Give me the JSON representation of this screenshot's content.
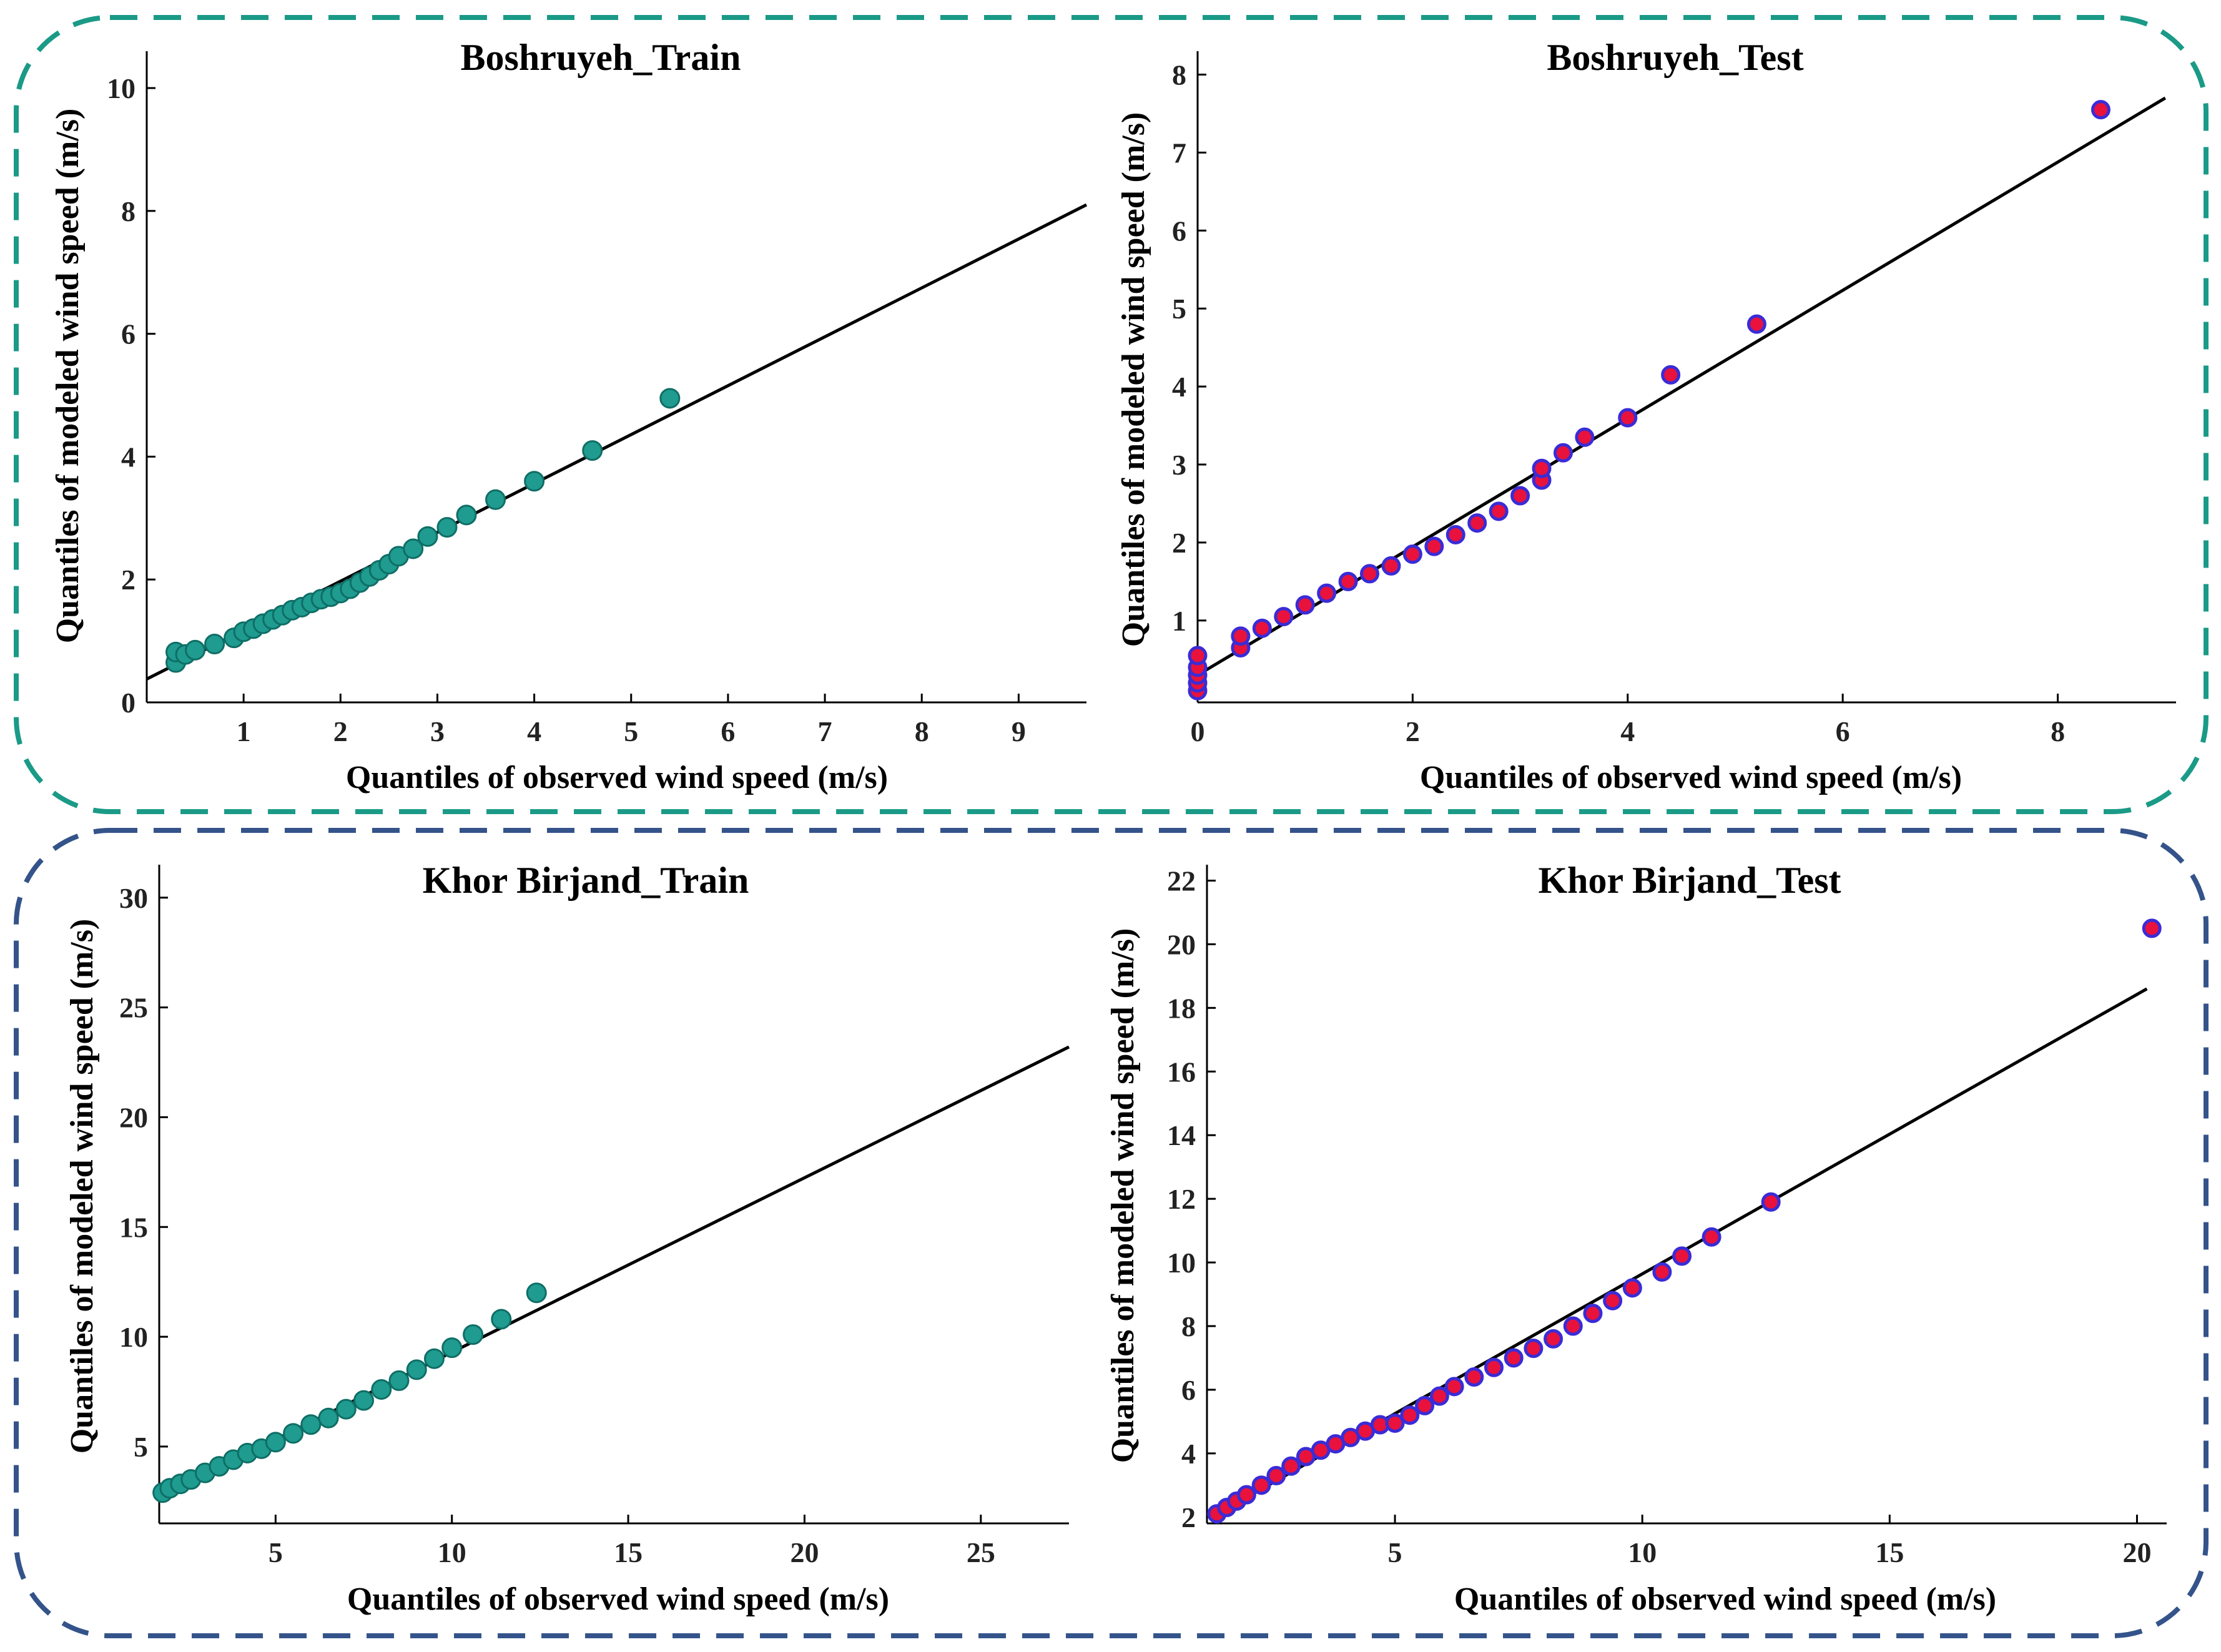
{
  "figure": {
    "background": "#ffffff",
    "groups": [
      {
        "name": "Boshruyeh",
        "border_color": "#1a9a87"
      },
      {
        "name": "Khor Birjand",
        "border_color": "#34538a"
      }
    ]
  },
  "colors": {
    "train_marker": "#1f9b8f",
    "train_marker_edge": "#0f6e66",
    "test_marker_face": "#e8123c",
    "test_marker_edge": "#3a2cd6",
    "reference_line": "#000000",
    "axes": "#000000"
  },
  "chart_data": [
    {
      "type": "scatter",
      "title": "Boshruyeh_Train",
      "xlabel": "Quantiles of observed wind speed (m/s)",
      "ylabel": "Quantiles of modeled wind speed (m/s)",
      "xlim": [
        0,
        9.7
      ],
      "ylim": [
        0,
        10.6
      ],
      "xticks": [
        1,
        2,
        3,
        4,
        5,
        6,
        7,
        8,
        9
      ],
      "yticks": [
        0,
        2,
        4,
        6,
        8,
        10
      ],
      "marker": "train",
      "reference_line": [
        [
          0,
          0.38
        ],
        [
          9.7,
          8.1
        ]
      ],
      "series": [
        {
          "name": "Q-Q",
          "x": [
            0.3,
            0.3,
            0.4,
            0.5,
            0.7,
            0.9,
            1.0,
            1.1,
            1.2,
            1.3,
            1.4,
            1.5,
            1.6,
            1.7,
            1.8,
            1.9,
            2.0,
            2.1,
            2.2,
            2.3,
            2.4,
            2.5,
            2.6,
            2.75,
            2.9,
            3.1,
            3.3,
            3.6,
            4.0,
            4.6,
            5.4
          ],
          "y": [
            0.65,
            0.82,
            0.78,
            0.85,
            0.95,
            1.05,
            1.15,
            1.2,
            1.28,
            1.35,
            1.42,
            1.5,
            1.55,
            1.62,
            1.68,
            1.72,
            1.78,
            1.85,
            1.95,
            2.05,
            2.15,
            2.25,
            2.38,
            2.5,
            2.7,
            2.85,
            3.05,
            3.3,
            3.6,
            4.1,
            4.95
          ]
        }
      ]
    },
    {
      "type": "scatter",
      "title": "Boshruyeh_Test",
      "xlabel": "Quantiles of observed wind speed (m/s)",
      "ylabel": "Quantiles of modeled wind speed (m/s)",
      "xlim": [
        0,
        9.1
      ],
      "ylim": [
        -0.05,
        8.3
      ],
      "xticks": [
        0,
        2,
        4,
        6,
        8
      ],
      "yticks": [
        1,
        2,
        3,
        4,
        5,
        6,
        7,
        8
      ],
      "marker": "test",
      "reference_line": [
        [
          0,
          0.3
        ],
        [
          9.0,
          7.7
        ]
      ],
      "series": [
        {
          "name": "Q-Q",
          "x": [
            0,
            0,
            0,
            0,
            0,
            0.4,
            0.4,
            0.6,
            0.8,
            1.0,
            1.2,
            1.4,
            1.6,
            1.8,
            2.0,
            2.2,
            2.4,
            2.6,
            2.8,
            3.0,
            3.2,
            3.2,
            3.4,
            3.6,
            4.0,
            4.4,
            5.2,
            8.4
          ],
          "y": [
            0.1,
            0.2,
            0.3,
            0.4,
            0.55,
            0.65,
            0.8,
            0.9,
            1.05,
            1.2,
            1.35,
            1.5,
            1.6,
            1.7,
            1.85,
            1.95,
            2.1,
            2.25,
            2.4,
            2.6,
            2.8,
            2.95,
            3.15,
            3.35,
            3.6,
            4.15,
            4.8,
            7.55
          ]
        }
      ]
    },
    {
      "type": "scatter",
      "title": "Khor Birjand_Train",
      "xlabel": "Quantiles of observed wind speed (m/s)",
      "ylabel": "Quantiles of modeled wind speed (m/s)",
      "xlim": [
        1.7,
        27.5
      ],
      "ylim": [
        1.5,
        31.5
      ],
      "xticks": [
        5,
        10,
        15,
        20,
        25
      ],
      "yticks": [
        5,
        10,
        15,
        20,
        25,
        30
      ],
      "marker": "train",
      "reference_line": [
        [
          1.7,
          2.7
        ],
        [
          27.5,
          23.2
        ]
      ],
      "series": [
        {
          "name": "Q-Q",
          "x": [
            1.8,
            2.0,
            2.3,
            2.6,
            3.0,
            3.4,
            3.8,
            4.2,
            4.6,
            5.0,
            5.5,
            6.0,
            6.5,
            7.0,
            7.5,
            8.0,
            8.5,
            9.0,
            9.5,
            10.0,
            10.6,
            11.4,
            12.4
          ],
          "y": [
            2.9,
            3.1,
            3.3,
            3.5,
            3.8,
            4.1,
            4.4,
            4.7,
            4.9,
            5.2,
            5.6,
            6.0,
            6.3,
            6.7,
            7.1,
            7.6,
            8.0,
            8.5,
            9.0,
            9.5,
            10.1,
            10.8,
            12.0
          ]
        }
      ]
    },
    {
      "type": "scatter",
      "title": "Khor Birjand_Test",
      "xlabel": "Quantiles of observed wind speed (m/s)",
      "ylabel": "Quantiles of modeled wind speed (m/s)",
      "xlim": [
        1.2,
        20.6
      ],
      "ylim": [
        1.8,
        22.5
      ],
      "xticks": [
        5,
        10,
        15,
        20
      ],
      "yticks": [
        2,
        4,
        6,
        8,
        10,
        12,
        14,
        16,
        18,
        20,
        22
      ],
      "marker": "test",
      "reference_line": [
        [
          1.3,
          2.0
        ],
        [
          20.2,
          18.6
        ]
      ],
      "series": [
        {
          "name": "Q-Q",
          "x": [
            1.4,
            1.6,
            1.8,
            2.0,
            2.3,
            2.6,
            2.9,
            3.2,
            3.5,
            3.8,
            4.1,
            4.4,
            4.7,
            5.0,
            5.3,
            5.6,
            5.9,
            6.2,
            6.6,
            7.0,
            7.4,
            7.8,
            8.2,
            8.6,
            9.0,
            9.4,
            9.8,
            10.4,
            10.8,
            11.4,
            12.6,
            20.3
          ],
          "y": [
            2.1,
            2.3,
            2.5,
            2.7,
            3.0,
            3.3,
            3.6,
            3.9,
            4.1,
            4.3,
            4.5,
            4.7,
            4.9,
            4.95,
            5.2,
            5.5,
            5.8,
            6.1,
            6.4,
            6.7,
            7.0,
            7.3,
            7.6,
            8.0,
            8.4,
            8.8,
            9.2,
            9.7,
            10.2,
            10.8,
            11.9,
            20.5
          ]
        }
      ]
    }
  ]
}
